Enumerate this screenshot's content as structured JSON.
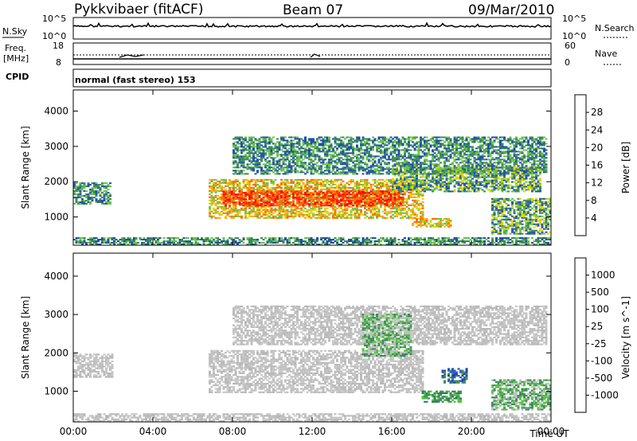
{
  "header": {
    "station": "Pykkvibaer (fitACF)",
    "beam": "Beam 07",
    "date": "09/Mar/2010"
  },
  "top_panels": {
    "nsky_label": "N.Sky",
    "nsky_ticks": [
      "10^5",
      "10^0"
    ],
    "nsearch_label": "N.Search",
    "nsearch_ticks": [
      "10^5",
      "10^0"
    ],
    "freq_label_1": "Freq.",
    "freq_label_2": "[MHz]",
    "freq_ticks": [
      "18",
      "8"
    ],
    "nave_label": "Nave",
    "nave_ticks": [
      "60",
      "0"
    ],
    "cpid_label": "CPID",
    "cpid_text": "normal (fast stereo) 153"
  },
  "chart_data": [
    {
      "type": "heatmap",
      "name": "power",
      "ylabel": "Slant Range [km]",
      "ylim": [
        200,
        4600
      ],
      "yticks": [
        1000,
        2000,
        3000,
        4000
      ],
      "xlim_hours": [
        0,
        24
      ],
      "colorbar_label": "Power [dB]",
      "colorbar_ticks": [
        "28",
        "24",
        "20",
        "16",
        "12",
        "8",
        "4"
      ],
      "colorbar_colors": [
        "#ff0000",
        "#ff6a00",
        "#ffa500",
        "#e6d200",
        "#68c44a",
        "#3a8a5a",
        "#1f4ea8",
        "#0000ff"
      ],
      "regions": [
        {
          "t0": 0.0,
          "t1": 1.9,
          "r0": 1350,
          "r1": 1950,
          "level": "low"
        },
        {
          "t0": 6.8,
          "t1": 17.5,
          "r0": 950,
          "r1": 2050,
          "level": "high"
        },
        {
          "t0": 7.5,
          "t1": 16.5,
          "r0": 1300,
          "r1": 1750,
          "level": "max"
        },
        {
          "t0": 8.0,
          "t1": 23.8,
          "r0": 2200,
          "r1": 3250,
          "level": "low"
        },
        {
          "t0": 16.0,
          "t1": 23.5,
          "r0": 1700,
          "r1": 2400,
          "level": "mid"
        },
        {
          "t0": 17.0,
          "t1": 19.0,
          "r0": 700,
          "r1": 950,
          "level": "high"
        },
        {
          "t0": 21.0,
          "t1": 24.0,
          "r0": 500,
          "r1": 1500,
          "level": "mid"
        },
        {
          "t0": 0.0,
          "t1": 24.0,
          "r0": 200,
          "r1": 400,
          "level": "low"
        }
      ]
    },
    {
      "type": "heatmap",
      "name": "velocity",
      "ylabel": "Slant Range [km]",
      "ylim": [
        200,
        4600
      ],
      "yticks": [
        1000,
        2000,
        3000,
        4000
      ],
      "xlim_hours": [
        0,
        24
      ],
      "xticks": [
        "00:00",
        "04:00",
        "08:00",
        "12:00",
        "16:00",
        "20:00",
        "00:00"
      ],
      "xlabel": "Time UT",
      "colorbar_label": "Velocity [m s^-1]",
      "colorbar_ticks": [
        "1000",
        "500",
        "100",
        "25",
        "-25",
        "-100",
        "-500",
        "-1000"
      ],
      "colorbar_colors": [
        "#2040b0",
        "#3c8a5c",
        "#50c040",
        "#c0c0c0",
        "#c0c0c0",
        "#ffa000",
        "#ff6000",
        "#ff0000"
      ],
      "regions": [
        {
          "t0": 0.0,
          "t1": 2.0,
          "r0": 1350,
          "r1": 1950,
          "level": "ground"
        },
        {
          "t0": 6.8,
          "t1": 17.5,
          "r0": 950,
          "r1": 2050,
          "level": "ground"
        },
        {
          "t0": 8.0,
          "t1": 23.8,
          "r0": 2200,
          "r1": 3200,
          "level": "ground"
        },
        {
          "t0": 14.5,
          "t1": 17.0,
          "r0": 1900,
          "r1": 3000,
          "level": "pos_low"
        },
        {
          "t0": 17.5,
          "t1": 19.5,
          "r0": 700,
          "r1": 1000,
          "level": "pos_mid"
        },
        {
          "t0": 18.5,
          "t1": 19.8,
          "r0": 1200,
          "r1": 1600,
          "level": "pos_high"
        },
        {
          "t0": 21.0,
          "t1": 24.0,
          "r0": 500,
          "r1": 1300,
          "level": "pos_low"
        },
        {
          "t0": 0.0,
          "t1": 24.0,
          "r0": 200,
          "r1": 400,
          "level": "ground"
        }
      ]
    }
  ]
}
